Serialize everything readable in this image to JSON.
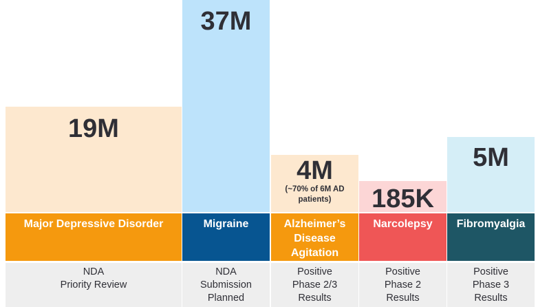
{
  "chart_data": {
    "type": "bar",
    "unit": "patients",
    "categories": [
      "Major Depressive Disorder",
      "Migraine",
      "Alzheimer’s\nDisease\nAgitation",
      "Narcolepsy",
      "Fibromyalgia"
    ],
    "values": [
      19000000,
      37000000,
      4000000,
      185000,
      5000000
    ],
    "value_labels": [
      "19M",
      "37M",
      "4M",
      "185K",
      "5M"
    ],
    "notes": [
      "",
      "",
      "(~70% of 6M AD\npatients)",
      "",
      ""
    ],
    "status": [
      "NDA\nPriority Review",
      "NDA\nSubmission\nPlanned",
      "Positive\nPhase 2/3\nResults",
      "Positive\nPhase 2\nResults",
      "Positive\nPhase 3\nResults"
    ],
    "bar_colors": [
      "#fde8cf",
      "#bde3fb",
      "#fde8cf",
      "#fcd6d6",
      "#d5eef7"
    ],
    "category_colors": [
      "#f5990e",
      "#075591",
      "#f5990e",
      "#ef5656",
      "#1e5665"
    ],
    "status_color": "#eeeeee"
  }
}
